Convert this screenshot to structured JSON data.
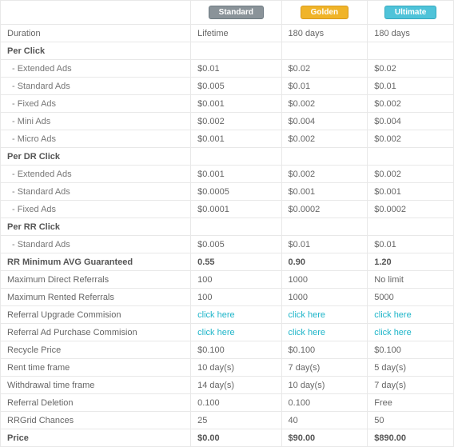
{
  "plans": {
    "standard": {
      "label": "Standard",
      "badge_bg": "#8a9399"
    },
    "golden": {
      "label": "Golden",
      "badge_bg": "#f0b429"
    },
    "ultimate": {
      "label": "Ultimate",
      "badge_bg": "#4fc3d9"
    }
  },
  "rows": {
    "duration": {
      "label": "Duration",
      "std": "Lifetime",
      "gold": "180 days",
      "ult": "180 days"
    },
    "per_click": {
      "label": "Per Click"
    },
    "pc_extended": {
      "label": "- Extended Ads",
      "std": "$0.01",
      "gold": "$0.02",
      "ult": "$0.02"
    },
    "pc_standard": {
      "label": "- Standard Ads",
      "std": "$0.005",
      "gold": "$0.01",
      "ult": "$0.01"
    },
    "pc_fixed": {
      "label": "- Fixed Ads",
      "std": "$0.001",
      "gold": "$0.002",
      "ult": "$0.002"
    },
    "pc_mini": {
      "label": "- Mini Ads",
      "std": "$0.002",
      "gold": "$0.004",
      "ult": "$0.004"
    },
    "pc_micro": {
      "label": "- Micro Ads",
      "std": "$0.001",
      "gold": "$0.002",
      "ult": "$0.002"
    },
    "per_dr": {
      "label": "Per DR Click"
    },
    "dr_extended": {
      "label": "- Extended Ads",
      "std": "$0.001",
      "gold": "$0.002",
      "ult": "$0.002"
    },
    "dr_standard": {
      "label": "- Standard Ads",
      "std": "$0.0005",
      "gold": "$0.001",
      "ult": "$0.001"
    },
    "dr_fixed": {
      "label": "- Fixed Ads",
      "std": "$0.0001",
      "gold": "$0.0002",
      "ult": "$0.0002"
    },
    "per_rr": {
      "label": "Per RR Click"
    },
    "rr_standard": {
      "label": "- Standard Ads",
      "std": "$0.005",
      "gold": "$0.01",
      "ult": "$0.01"
    },
    "rr_min_avg": {
      "label": "RR Minimum AVG Guaranteed",
      "std": "0.55",
      "gold": "0.90",
      "ult": "1.20"
    },
    "max_dr": {
      "label": "Maximum Direct Referrals",
      "std": "100",
      "gold": "1000",
      "ult": "No limit"
    },
    "max_rr": {
      "label": "Maximum Rented Referrals",
      "std": "100",
      "gold": "1000",
      "ult": "5000"
    },
    "ref_upgrade": {
      "label": "Referral Upgrade Commision",
      "std": "click here",
      "gold": "click here",
      "ult": "click here"
    },
    "ref_ad": {
      "label": "Referral Ad Purchase Commision",
      "std": "click here",
      "gold": "click here",
      "ult": "click here"
    },
    "recycle": {
      "label": "Recycle Price",
      "std": "$0.100",
      "gold": "$0.100",
      "ult": "$0.100"
    },
    "rent_time": {
      "label": "Rent time frame",
      "std": "10 day(s)",
      "gold": "7 day(s)",
      "ult": "5 day(s)"
    },
    "withdrawal": {
      "label": "Withdrawal time frame",
      "std": "14 day(s)",
      "gold": "10 day(s)",
      "ult": "7 day(s)"
    },
    "ref_del": {
      "label": "Referral Deletion",
      "std": "0.100",
      "gold": "0.100",
      "ult": "Free"
    },
    "rrgrid": {
      "label": "RRGrid Chances",
      "std": "25",
      "gold": "40",
      "ult": "50"
    },
    "price": {
      "label": "Price",
      "std": "$0.00",
      "gold": "$90.00",
      "ult": "$890.00"
    }
  },
  "link_color": "#1fb5c9"
}
